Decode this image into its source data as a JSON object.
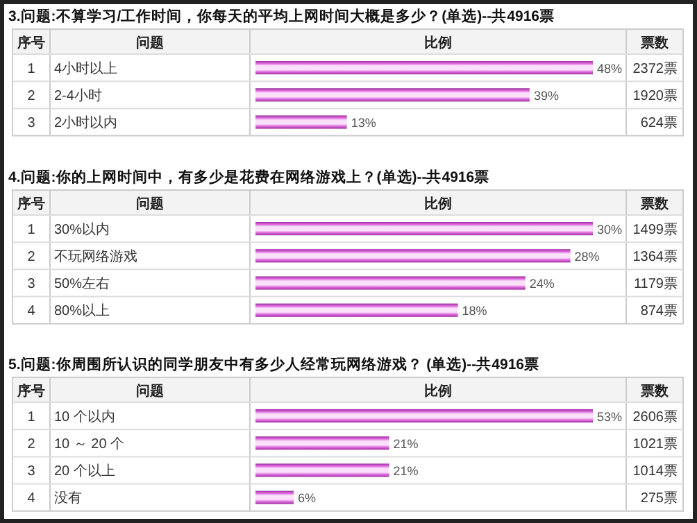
{
  "chart_data": [
    {
      "type": "bar",
      "orientation": "horizontal",
      "color": "#e070e0",
      "title": "3.问题:不算学习/工作时间，你每天的平均上网时间大概是多少？(单选)--共4916票",
      "categories": [
        "4小时以上",
        "2-4小时",
        "2小时以内"
      ],
      "values": [
        48,
        39,
        13
      ],
      "value_labels": [
        "48%",
        "39%",
        "13%"
      ],
      "annotations": [
        "序号",
        "问题",
        "比例",
        "票数",
        "1",
        "2",
        "3",
        "2372票",
        "1920票",
        "624票"
      ]
    },
    {
      "type": "bar",
      "orientation": "horizontal",
      "color": "#e070e0",
      "title": "4.问题:你的上网时间中，有多少是花费在网络游戏上？(单选)--共4916票",
      "categories": [
        "30%以内",
        "不玩网络游戏",
        "50%左右",
        "80%以上"
      ],
      "values": [
        30,
        28,
        24,
        18
      ],
      "value_labels": [
        "30%",
        "28%",
        "24%",
        "18%"
      ],
      "annotations": [
        "序号",
        "问题",
        "比例",
        "票数",
        "1",
        "2",
        "3",
        "4",
        "1499票",
        "1364票",
        "1179票",
        "874票"
      ]
    },
    {
      "type": "bar",
      "orientation": "horizontal",
      "color": "#e070e0",
      "title": "5.问题:你周围所认识的同学朋友中有多少人经常玩网络游戏？ (单选)--共4916票",
      "categories": [
        "10 个以内",
        "10 ～ 20 个",
        "20 个以上",
        "没有"
      ],
      "values": [
        53,
        21,
        21,
        6
      ],
      "value_labels": [
        "53%",
        "21%",
        "21%",
        "6%"
      ],
      "annotations": [
        "序号",
        "问题",
        "比例",
        "票数",
        "1",
        "2",
        "3",
        "4",
        "2606票",
        "1021票",
        "1014票",
        "275票"
      ]
    }
  ]
}
